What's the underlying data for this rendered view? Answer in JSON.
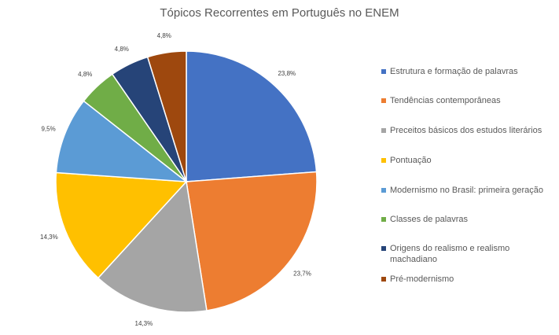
{
  "chart_data": {
    "type": "pie",
    "title": "Tópicos Recorrentes em Português no ENEM",
    "legend_position": "right",
    "slices": [
      {
        "label": "Estrutura e formação de palavras",
        "value": 23.8,
        "display": "23,8%",
        "color": "#4472C4"
      },
      {
        "label": "Tendências contemporâneas",
        "value": 23.7,
        "display": "23,7%",
        "color": "#ED7D31"
      },
      {
        "label": "Preceitos básicos dos estudos literários",
        "value": 14.3,
        "display": "14,3%",
        "color": "#A5A5A5"
      },
      {
        "label": "Pontuação",
        "value": 14.3,
        "display": "14,3%",
        "color": "#FFC000"
      },
      {
        "label": "Modernismo no Brasil: primeira geração",
        "value": 9.5,
        "display": "9,5%",
        "color": "#5B9BD5"
      },
      {
        "label": "Classes de palavras",
        "value": 4.8,
        "display": "4,8%",
        "color": "#70AD47"
      },
      {
        "label": "Origens do realismo e realismo machadiano",
        "value": 4.8,
        "display": "4,8%",
        "color": "#264478"
      },
      {
        "label": "Pré-modernismo",
        "value": 4.8,
        "display": "4,8%",
        "color": "#9E480E"
      }
    ]
  }
}
